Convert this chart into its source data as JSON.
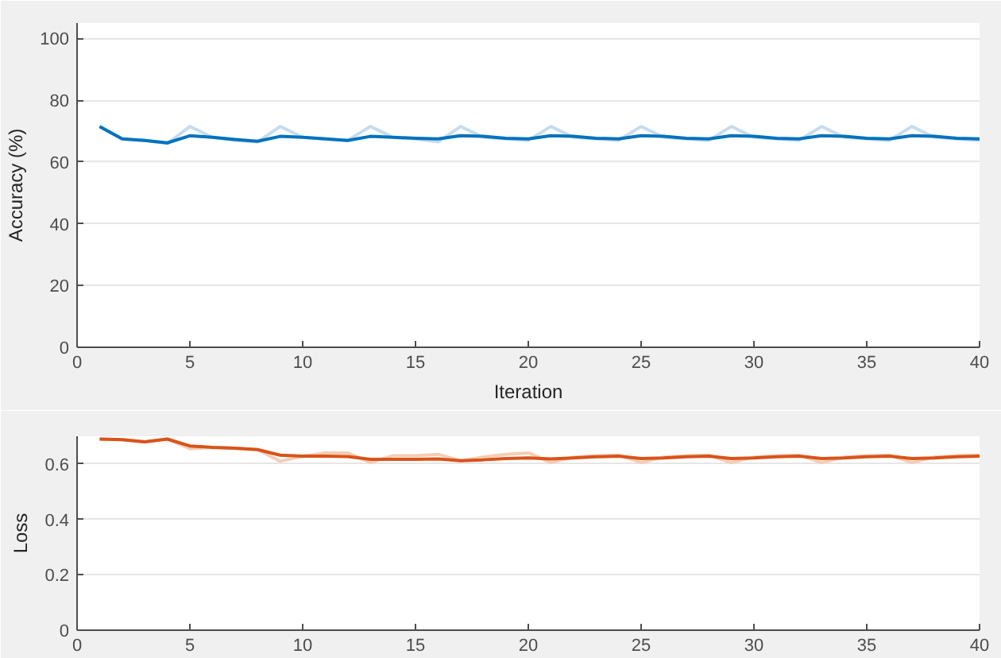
{
  "chart_data": [
    {
      "type": "line",
      "xlabel": "Iteration",
      "ylabel": "Accuracy (%)",
      "x": [
        1,
        2,
        3,
        4,
        5,
        6,
        7,
        8,
        9,
        10,
        11,
        12,
        13,
        14,
        15,
        16,
        17,
        18,
        19,
        20,
        21,
        22,
        23,
        24,
        25,
        26,
        27,
        28,
        29,
        30,
        31,
        32,
        33,
        34,
        35,
        36,
        37,
        38,
        39,
        40
      ],
      "xlim": [
        0,
        40
      ],
      "xticks": [
        0,
        5,
        10,
        15,
        20,
        25,
        30,
        35,
        40
      ],
      "ylim": [
        0,
        105
      ],
      "yticks": [
        0,
        20,
        40,
        60,
        80,
        100
      ],
      "grid": "y",
      "series": [
        {
          "color": "#c5dcef",
          "values": [
            71.5,
            67.5,
            67,
            66,
            71.5,
            68,
            67,
            66.5,
            71.5,
            68,
            67.5,
            67,
            71.5,
            68,
            67.5,
            66.5,
            71.5,
            68,
            67.5,
            67,
            71.5,
            68,
            67.5,
            67,
            71.5,
            68,
            67.5,
            67,
            71.5,
            68,
            67.5,
            67,
            71.5,
            68,
            67.5,
            67,
            71.5,
            68,
            67.5,
            67
          ]
        },
        {
          "color": "#0072bd",
          "values": [
            71.5,
            67.5,
            67,
            66.2,
            68.5,
            68,
            67.3,
            66.7,
            68.3,
            68,
            67.5,
            67,
            68.3,
            68,
            67.7,
            67.5,
            68.5,
            68.3,
            67.7,
            67.5,
            68.5,
            68.3,
            67.7,
            67.5,
            68.5,
            68.3,
            67.7,
            67.5,
            68.5,
            68.3,
            67.7,
            67.5,
            68.5,
            68.3,
            67.7,
            67.5,
            68.5,
            68.3,
            67.7,
            67.5
          ]
        }
      ]
    },
    {
      "type": "line",
      "ylabel": "Loss",
      "x": [
        1,
        2,
        3,
        4,
        5,
        6,
        7,
        8,
        9,
        10,
        11,
        12,
        13,
        14,
        15,
        16,
        17,
        18,
        19,
        20,
        21,
        22,
        23,
        24,
        25,
        26,
        27,
        28,
        29,
        30,
        31,
        32,
        33,
        34,
        35,
        36,
        37,
        38,
        39,
        40
      ],
      "xlim": [
        0,
        40
      ],
      "xticks": [
        0,
        5,
        10,
        15,
        20,
        25,
        30,
        35,
        40
      ],
      "ylim": [
        0,
        0.7
      ],
      "yticks": [
        0,
        0.2,
        0.4,
        0.6
      ],
      "grid": "y",
      "series": [
        {
          "color": "#f5cdb5",
          "values": [
            0.69,
            0.688,
            0.68,
            0.69,
            0.655,
            0.66,
            0.657,
            0.652,
            0.61,
            0.628,
            0.64,
            0.64,
            0.605,
            0.63,
            0.63,
            0.635,
            0.612,
            0.625,
            0.635,
            0.64,
            0.605,
            0.625,
            0.63,
            0.632,
            0.605,
            0.625,
            0.63,
            0.632,
            0.605,
            0.625,
            0.63,
            0.632,
            0.605,
            0.625,
            0.63,
            0.632,
            0.605,
            0.625,
            0.63,
            0.632
          ]
        },
        {
          "color": "#d95319",
          "values": [
            0.69,
            0.688,
            0.68,
            0.69,
            0.665,
            0.66,
            0.657,
            0.652,
            0.632,
            0.628,
            0.628,
            0.627,
            0.617,
            0.617,
            0.617,
            0.618,
            0.612,
            0.615,
            0.62,
            0.622,
            0.618,
            0.622,
            0.626,
            0.628,
            0.62,
            0.622,
            0.626,
            0.628,
            0.62,
            0.622,
            0.626,
            0.628,
            0.62,
            0.622,
            0.626,
            0.628,
            0.62,
            0.622,
            0.626,
            0.628
          ]
        }
      ]
    }
  ]
}
